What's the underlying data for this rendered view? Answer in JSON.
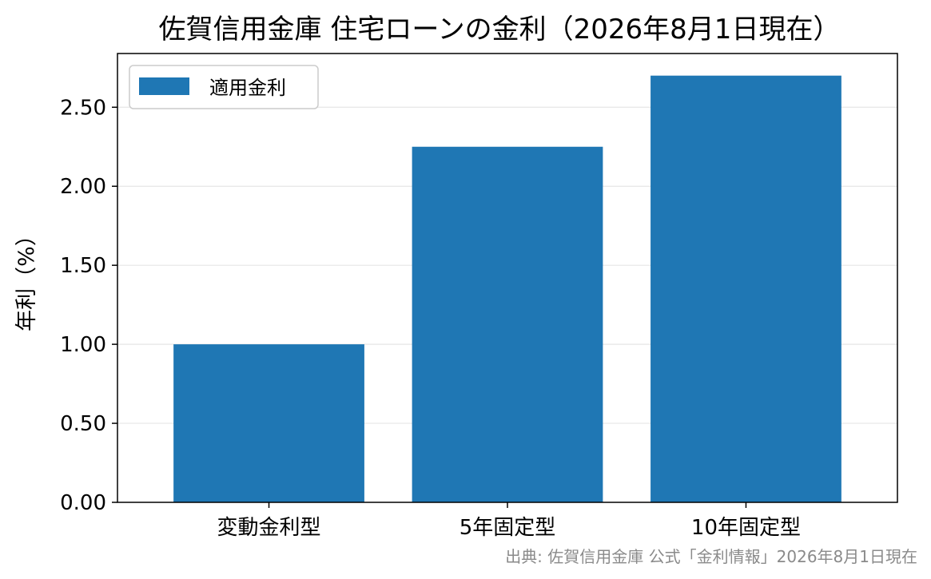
{
  "chart_data": {
    "type": "bar",
    "title": "佐賀信用金庫 住宅ローンの金利（2026年8月1日現在）",
    "xlabel": "",
    "ylabel": "年利（%）",
    "categories": [
      "変動金利型",
      "5年固定型",
      "10年固定型"
    ],
    "series": [
      {
        "name": "適用金利",
        "values": [
          1.0,
          2.25,
          2.7
        ],
        "color": "#1f77b4"
      }
    ],
    "ylim": [
      0,
      2.84
    ],
    "yticks": [
      0.0,
      0.5,
      1.0,
      1.5,
      2.0,
      2.5
    ],
    "ytick_labels": [
      "0.00",
      "0.50",
      "1.00",
      "1.50",
      "2.00",
      "2.50"
    ],
    "grid": {
      "y": true,
      "x": false,
      "color": "#e6e6e6"
    },
    "legend": {
      "position": "top-left"
    },
    "source_note": "出典: 佐賀信用金庫 公式「金利情報」2026年8月1日現在"
  }
}
